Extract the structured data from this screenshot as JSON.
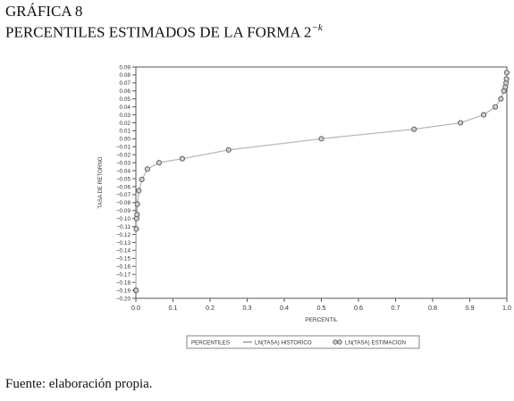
{
  "figure": {
    "label": "GRÁFICA 8",
    "title_text": "PERCENTILES ESTIMADOS DE LA FORMA 2",
    "title_exponent": "−k",
    "source": "Fuente: elaboración propia."
  },
  "chart_data": {
    "type": "scatter",
    "xlabel": "PERCENTIL",
    "ylabel": "TASA DE RETORNO",
    "xlim": [
      0.0,
      1.0
    ],
    "ylim": [
      -0.2,
      0.09
    ],
    "x_ticks": [
      0.0,
      0.1,
      0.2,
      0.3,
      0.4,
      0.5,
      0.6,
      0.7,
      0.8,
      0.9,
      1.0
    ],
    "x_tick_labels": [
      "0.0",
      "0.1",
      "0.2",
      "0.3",
      "0.4",
      "0.5",
      "0.6",
      "0.7",
      "0.8",
      "0.9",
      "1.0"
    ],
    "y_ticks": [
      0.09,
      0.08,
      0.07,
      0.06,
      0.05,
      0.04,
      0.03,
      0.02,
      0.01,
      0.0,
      -0.01,
      -0.02,
      -0.03,
      -0.04,
      -0.05,
      -0.06,
      -0.07,
      -0.08,
      -0.09,
      -0.1,
      -0.11,
      -0.12,
      -0.13,
      -0.14,
      -0.15,
      -0.16,
      -0.17,
      -0.18,
      -0.19,
      -0.2
    ],
    "y_tick_labels": [
      "0.09",
      "0.08",
      "0.07",
      "0.06",
      "0.05",
      "0.04",
      "0.03",
      "0.02",
      "0.01",
      "0.00",
      "−0.01",
      "−0.02",
      "−0.03",
      "−0.04",
      "−0.05",
      "−0.06",
      "−0.07",
      "−0.08",
      "−0.09",
      "−0.10",
      "−0.11",
      "−0.12",
      "−0.13",
      "−0.14",
      "−0.15",
      "−0.16",
      "−0.17",
      "−0.18",
      "−0.19",
      "−0.20"
    ],
    "grid": false,
    "legend": {
      "position": "bottom",
      "title": "PERCENTILES",
      "entries": [
        "LN(TASA) HISTORICO",
        "LN(TASA) ESTIMACION"
      ]
    },
    "series": [
      {
        "name": "LN(TASA) HISTORICO",
        "kind": "line",
        "color": "#b8b8b8",
        "x": [
          0.0,
          0.001,
          0.002,
          0.004,
          0.008,
          0.016,
          0.031,
          0.0625,
          0.125,
          0.25,
          0.5,
          0.75,
          0.875,
          0.9375,
          0.96875,
          0.984,
          0.992,
          0.996,
          0.998,
          0.999
        ],
        "y": [
          -0.19,
          -0.115,
          -0.1,
          -0.083,
          -0.066,
          -0.052,
          -0.038,
          -0.03,
          -0.025,
          -0.014,
          0.0,
          0.012,
          0.02,
          0.03,
          0.04,
          0.05,
          0.06,
          0.068,
          0.075,
          0.082
        ]
      },
      {
        "name": "LN(TASA) ESTIMACION",
        "kind": "markers",
        "color": "#555555",
        "x": [
          0.0,
          0.0005,
          0.001,
          0.002,
          0.003,
          0.004,
          0.008,
          0.016,
          0.031,
          0.0625,
          0.125,
          0.25,
          0.5,
          0.75,
          0.875,
          0.9375,
          0.96875,
          0.984,
          0.992,
          0.996,
          0.998,
          0.999,
          1.0
        ],
        "y": [
          -0.19,
          -0.19,
          -0.113,
          -0.1,
          -0.095,
          -0.082,
          -0.065,
          -0.051,
          -0.038,
          -0.03,
          -0.025,
          -0.014,
          0.0,
          0.012,
          0.02,
          0.03,
          0.04,
          0.05,
          0.06,
          0.065,
          0.07,
          0.075,
          0.083
        ]
      }
    ]
  }
}
